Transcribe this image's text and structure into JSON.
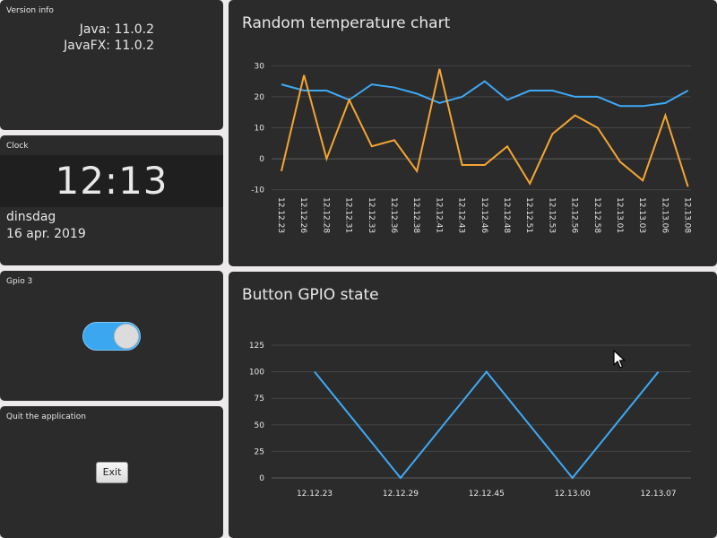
{
  "version_tile": {
    "title": "Version info",
    "java": "Java: 11.0.2",
    "javafx": "JavaFX: 11.0.2"
  },
  "clock_tile": {
    "title": "Clock",
    "time": "12:13",
    "day": "dinsdag",
    "date": "16 apr. 2019"
  },
  "gpio_tile": {
    "title": "Gpio 3",
    "toggle_on": true
  },
  "quit_tile": {
    "title": "Quit the application",
    "exit_label": "Exit"
  },
  "colors": {
    "blue_series": "#3fa9f5",
    "orange_series": "#f5a533",
    "tile_bg": "#2b2b2b"
  },
  "chart_data": [
    {
      "type": "line",
      "title": "Random temperature chart",
      "categories": [
        "12.12.23",
        "12.12.26",
        "12.12.28",
        "12.12.31",
        "12.12.33",
        "12.12.36",
        "12.12.38",
        "12.12.41",
        "12.12.43",
        "12.12.46",
        "12.12.48",
        "12.12.51",
        "12.12.53",
        "12.12.56",
        "12.12.58",
        "12.13.01",
        "12.13.03",
        "12.13.06",
        "12.13.08"
      ],
      "yticks": [
        30,
        20,
        10,
        0,
        -10
      ],
      "ylim": [
        -13,
        33
      ],
      "grid": true,
      "series": [
        {
          "color": "#3fa9f5",
          "values": [
            24,
            22,
            22,
            19,
            24,
            23,
            21,
            18,
            20,
            25,
            19,
            22,
            22,
            20,
            20,
            17,
            17,
            18,
            22
          ]
        },
        {
          "color": "#f5a533",
          "values": [
            -4,
            27,
            0,
            19,
            4,
            6,
            -4,
            29,
            -2,
            -2,
            4,
            -8,
            8,
            14,
            10,
            -1,
            -7,
            14,
            -9
          ]
        }
      ]
    },
    {
      "type": "line",
      "title": "Button GPIO state",
      "categories": [
        "12.12.23",
        "12.12.29",
        "12.12.45",
        "12.13.00",
        "12.13.07"
      ],
      "yticks": [
        125,
        100,
        75,
        50,
        25,
        0
      ],
      "ylim": [
        0,
        125
      ],
      "grid": true,
      "series": [
        {
          "color": "#3fa9f5",
          "values": [
            100,
            0,
            100,
            0,
            100
          ]
        }
      ]
    }
  ]
}
